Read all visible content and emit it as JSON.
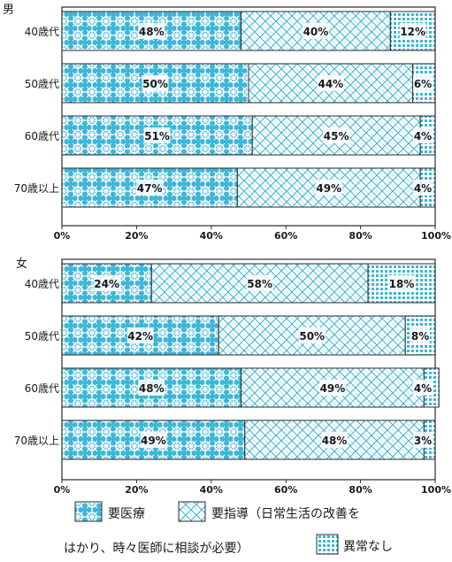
{
  "chart_data": [
    {
      "type": "bar",
      "orientation": "horizontal",
      "stacked": true,
      "title": "男",
      "categories": [
        "40歳代",
        "50歳代",
        "60歳代",
        "70歳以上"
      ],
      "series": [
        {
          "name": "要医療",
          "values": [
            48,
            50,
            51,
            47
          ]
        },
        {
          "name": "要指導（日常生活の改善をはかり、時々医師に相談が必要）",
          "values": [
            40,
            44,
            45,
            49
          ]
        },
        {
          "name": "異常なし",
          "values": [
            12,
            6,
            4,
            4
          ]
        }
      ],
      "xticks": [
        "0%",
        "20%",
        "40%",
        "60%",
        "80%",
        "100%"
      ],
      "xlim": [
        0,
        100
      ]
    },
    {
      "type": "bar",
      "orientation": "horizontal",
      "stacked": true,
      "title": "女",
      "categories": [
        "40歳代",
        "50歳代",
        "60歳代",
        "70歳以上"
      ],
      "series": [
        {
          "name": "要医療",
          "values": [
            24,
            42,
            48,
            49
          ]
        },
        {
          "name": "要指導（日常生活の改善をはかり、時々医師に相談が必要）",
          "values": [
            58,
            50,
            49,
            48
          ]
        },
        {
          "name": "異常なし",
          "values": [
            18,
            8,
            4,
            3
          ]
        }
      ],
      "xticks": [
        "0%",
        "20%",
        "40%",
        "60%",
        "80%",
        "100%"
      ],
      "xlim": [
        0,
        100
      ]
    }
  ],
  "legend": {
    "items": [
      {
        "label": "要医療"
      },
      {
        "label": "要指導（日常生活の改善を"
      },
      {
        "label": "異常なし"
      }
    ],
    "line2": "はかり、時々医師に相談が必要）"
  },
  "colors": {
    "fill": "#3fb6d6",
    "fill_light": "#8fd3e8",
    "outline": "#2a2a2a"
  }
}
